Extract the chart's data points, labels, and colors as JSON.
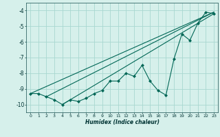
{
  "xlabel": "Humidex (Indice chaleur)",
  "background_color": "#d6f0eb",
  "grid_color": "#a8d8d0",
  "line_color": "#006655",
  "marker_color": "#006655",
  "xlim": [
    -0.5,
    23.5
  ],
  "ylim": [
    -10.5,
    -3.5
  ],
  "yticks": [
    -10,
    -9,
    -8,
    -7,
    -6,
    -5,
    -4
  ],
  "xticks": [
    0,
    1,
    2,
    3,
    4,
    5,
    6,
    7,
    8,
    9,
    10,
    11,
    12,
    13,
    14,
    15,
    16,
    17,
    18,
    19,
    20,
    21,
    22,
    23
  ],
  "x": [
    0,
    1,
    2,
    3,
    4,
    5,
    6,
    7,
    8,
    9,
    10,
    11,
    12,
    13,
    14,
    15,
    16,
    17,
    18,
    19,
    20,
    21,
    22,
    23
  ],
  "y_main": [
    -9.3,
    -9.3,
    -9.5,
    -9.7,
    -10.0,
    -9.7,
    -9.8,
    -9.6,
    -9.3,
    -9.1,
    -8.5,
    -8.5,
    -8.0,
    -8.2,
    -7.5,
    -8.5,
    -9.1,
    -9.4,
    -7.1,
    -5.5,
    -5.9,
    -4.8,
    -4.1,
    -4.2
  ],
  "y_line1_x": [
    0,
    23
  ],
  "y_line1_y": [
    -9.3,
    -4.1
  ],
  "y_line2_x": [
    2,
    23
  ],
  "y_line2_y": [
    -9.5,
    -4.1
  ],
  "y_line3_x": [
    4,
    23
  ],
  "y_line3_y": [
    -10.0,
    -4.2
  ]
}
